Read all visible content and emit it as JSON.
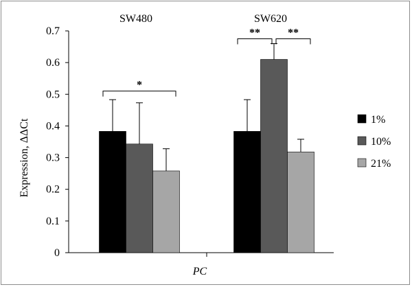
{
  "chart_data": {
    "type": "bar",
    "title": "",
    "xlabel": "PC",
    "ylabel": "Expression,  ΔΔCt",
    "ylim": [
      0,
      0.7
    ],
    "yticks": [
      "0",
      "0.1",
      "0.2",
      "0.3",
      "0.4",
      "0.5",
      "0.6",
      "0.7"
    ],
    "categories": [
      "SW480",
      "SW620"
    ],
    "series": [
      {
        "name": "1%",
        "color": "#000000",
        "values": [
          0.383,
          0.383
        ],
        "error": [
          0.1,
          0.1
        ]
      },
      {
        "name": "10%",
        "color": "#595959",
        "values": [
          0.343,
          0.61
        ],
        "error": [
          0.13,
          0.05
        ]
      },
      {
        "name": "21%",
        "color": "#a6a6a6",
        "values": [
          0.258,
          0.318
        ],
        "error": [
          0.07,
          0.04
        ]
      }
    ],
    "significance": [
      {
        "group": 0,
        "from": 0,
        "to": 2,
        "label": "*",
        "y": 0.51
      },
      {
        "group": 1,
        "from": 0,
        "to": 1,
        "label": "**",
        "y": 0.675
      },
      {
        "group": 1,
        "from": 1,
        "to": 2,
        "label": "**",
        "y": 0.675
      }
    ],
    "legend_position": "right",
    "grid": false
  }
}
